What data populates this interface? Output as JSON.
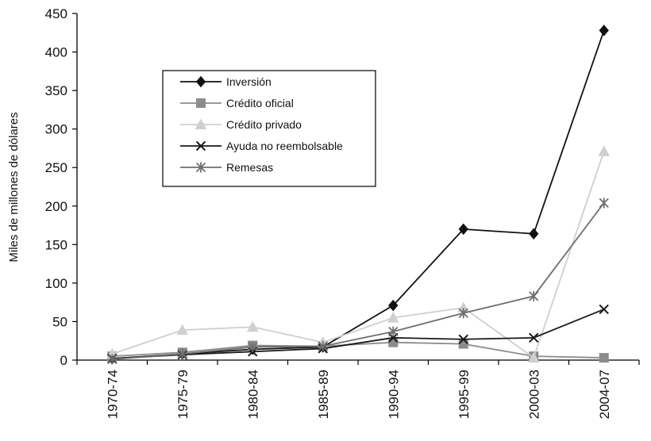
{
  "chart_data": {
    "type": "line",
    "categories": [
      "1970-74",
      "1975-79",
      "1980-84",
      "1985-89",
      "1990-94",
      "1995-99",
      "2000-03",
      "2004-07"
    ],
    "ylabel": "Miles de millones de dólares",
    "ylim": [
      0,
      450
    ],
    "yticks": [
      0,
      50,
      100,
      150,
      200,
      250,
      300,
      350,
      400,
      450
    ],
    "grid": false,
    "legend_position": "top-left",
    "series": [
      {
        "name": "Inversión",
        "color": "#111111",
        "marker": "diamond",
        "values": [
          2,
          8,
          14,
          17,
          71,
          170,
          164,
          428
        ]
      },
      {
        "name": "Crédito oficial",
        "color": "#8c8c8c",
        "marker": "square",
        "values": [
          5,
          10,
          19,
          18,
          23,
          21,
          5,
          3
        ]
      },
      {
        "name": "Crédito privado",
        "color": "#cfcfcf",
        "marker": "triangle",
        "values": [
          8,
          39,
          43,
          23,
          55,
          68,
          3,
          271
        ]
      },
      {
        "name": "Ayuda no reembolsable",
        "color": "#1a1a1a",
        "marker": "x",
        "values": [
          2,
          7,
          11,
          15,
          29,
          27,
          29,
          66
        ]
      },
      {
        "name": "Remesas",
        "color": "#6e6e6e",
        "marker": "star",
        "values": [
          1,
          8,
          17,
          18,
          37,
          61,
          83,
          204
        ]
      }
    ]
  }
}
